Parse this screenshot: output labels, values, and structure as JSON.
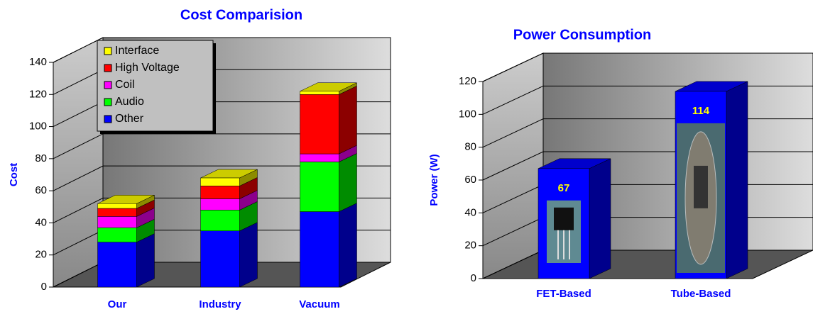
{
  "chart_data": [
    {
      "type": "stacked_bar_3d",
      "title": "Cost Comparision",
      "y_label": "Cost",
      "categories": [
        "Our",
        "Industry",
        "Vacuum"
      ],
      "series": [
        {
          "name": "Other",
          "color": "#0000ff",
          "values": [
            28,
            35,
            47
          ]
        },
        {
          "name": "Audio",
          "color": "#00ff00",
          "values": [
            9,
            13,
            31
          ]
        },
        {
          "name": "Coil",
          "color": "#ff00ff",
          "values": [
            7,
            7,
            5
          ]
        },
        {
          "name": "High Voltage",
          "color": "#ff0000",
          "values": [
            5,
            8,
            37
          ]
        },
        {
          "name": "Interface",
          "color": "#ffff00",
          "values": [
            3,
            5,
            2
          ]
        }
      ],
      "ylim": [
        0,
        140
      ],
      "yticks": [
        0,
        20,
        40,
        60,
        80,
        100,
        120,
        140
      ],
      "grid": true,
      "legend": "upper left"
    },
    {
      "type": "bar_3d",
      "title": "Power Consumption",
      "y_label": "Power (W)",
      "categories": [
        "FET-Based",
        "Tube-Based"
      ],
      "values": [
        67,
        114
      ],
      "color": "#0000ff",
      "ylim": [
        0,
        120
      ],
      "yticks": [
        0,
        20,
        40,
        60,
        80,
        100,
        120
      ],
      "grid": true
    }
  ]
}
